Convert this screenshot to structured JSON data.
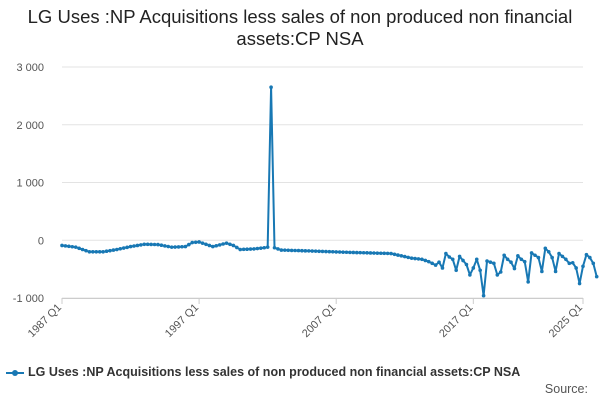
{
  "chart_data": {
    "type": "line",
    "title": "LG Uses :NP Acquisitions less sales of non produced non financial assets:CP NSA",
    "xlabel": "",
    "ylabel": "",
    "ylim": [
      -1000,
      3000
    ],
    "yticks": [
      -1000,
      0,
      1000,
      2000,
      3000
    ],
    "ytick_labels": [
      "-1 000",
      "0",
      "1 000",
      "2 000",
      "3 000"
    ],
    "xlim": [
      "1987 Q1",
      "2025 Q1"
    ],
    "xtick_labels": [
      "1987 Q1",
      "1997 Q1",
      "2007 Q1",
      "2017 Q1",
      "2025 Q1"
    ],
    "grid": true,
    "legend_position": "bottom-left",
    "series": [
      {
        "name": "LG Uses :NP Acquisitions less sales of non produced non financial assets:CP NSA",
        "color": "#1878b4",
        "points": [
          [
            "1987 Q1",
            -90
          ],
          [
            "1988 Q1",
            -120
          ],
          [
            "1989 Q1",
            -200
          ],
          [
            "1990 Q1",
            -200
          ],
          [
            "1991 Q1",
            -160
          ],
          [
            "1992 Q1",
            -110
          ],
          [
            "1993 Q1",
            -70
          ],
          [
            "1994 Q1",
            -75
          ],
          [
            "1995 Q1",
            -120
          ],
          [
            "1996 Q1",
            -110
          ],
          [
            "1996 Q3",
            -40
          ],
          [
            "1997 Q1",
            -30
          ],
          [
            "1998 Q1",
            -110
          ],
          [
            "1999 Q1",
            -50
          ],
          [
            "1999 Q3",
            -90
          ],
          [
            "2000 Q1",
            -160
          ],
          [
            "2001 Q1",
            -150
          ],
          [
            "2001 Q4",
            -130
          ],
          [
            "2002 Q1",
            -120
          ],
          [
            "2002 Q2",
            2650
          ],
          [
            "2002 Q3",
            -130
          ],
          [
            "2003 Q1",
            -170
          ],
          [
            "2005 Q1",
            -185
          ],
          [
            "2008 Q1",
            -210
          ],
          [
            "2011 Q1",
            -230
          ],
          [
            "2011 Q4",
            -270
          ],
          [
            "2012 Q3",
            -310
          ],
          [
            "2013 Q2",
            -330
          ],
          [
            "2013 Q4",
            -370
          ],
          [
            "2014 Q2",
            -430
          ],
          [
            "2014 Q3",
            -380
          ],
          [
            "2014 Q4",
            -480
          ],
          [
            "2015 Q1",
            -230
          ],
          [
            "2015 Q2",
            -290
          ],
          [
            "2015 Q3",
            -330
          ],
          [
            "2015 Q4",
            -520
          ],
          [
            "2016 Q1",
            -280
          ],
          [
            "2016 Q2",
            -350
          ],
          [
            "2016 Q3",
            -420
          ],
          [
            "2016 Q4",
            -600
          ],
          [
            "2017 Q1",
            -480
          ],
          [
            "2017 Q2",
            -330
          ],
          [
            "2017 Q3",
            -520
          ],
          [
            "2017 Q4",
            -960
          ],
          [
            "2018 Q1",
            -360
          ],
          [
            "2018 Q2",
            -380
          ],
          [
            "2018 Q3",
            -400
          ],
          [
            "2018 Q4",
            -600
          ],
          [
            "2019 Q1",
            -550
          ],
          [
            "2019 Q2",
            -260
          ],
          [
            "2019 Q3",
            -330
          ],
          [
            "2019 Q4",
            -380
          ],
          [
            "2020 Q1",
            -490
          ],
          [
            "2020 Q2",
            -270
          ],
          [
            "2020 Q3",
            -330
          ],
          [
            "2020 Q4",
            -370
          ],
          [
            "2021 Q1",
            -720
          ],
          [
            "2021 Q2",
            -220
          ],
          [
            "2021 Q3",
            -260
          ],
          [
            "2021 Q4",
            -300
          ],
          [
            "2022 Q1",
            -540
          ],
          [
            "2022 Q2",
            -140
          ],
          [
            "2022 Q3",
            -200
          ],
          [
            "2022 Q4",
            -300
          ],
          [
            "2023 Q1",
            -540
          ],
          [
            "2023 Q2",
            -230
          ],
          [
            "2023 Q3",
            -280
          ],
          [
            "2023 Q4",
            -330
          ],
          [
            "2024 Q1",
            -400
          ],
          [
            "2024 Q2",
            -390
          ],
          [
            "2024 Q3",
            -480
          ],
          [
            "2024 Q4",
            -750
          ],
          [
            "2025 Q1",
            -450
          ],
          [
            "2025 Q2",
            -250
          ],
          [
            "2025 Q3",
            -300
          ],
          [
            "2025 Q4",
            -400
          ],
          [
            "2026 Q1",
            -630
          ]
        ]
      }
    ]
  },
  "legend": {
    "label": "LG Uses :NP Acquisitions less sales of non produced non financial assets:CP NSA"
  },
  "source_label": "Source:"
}
